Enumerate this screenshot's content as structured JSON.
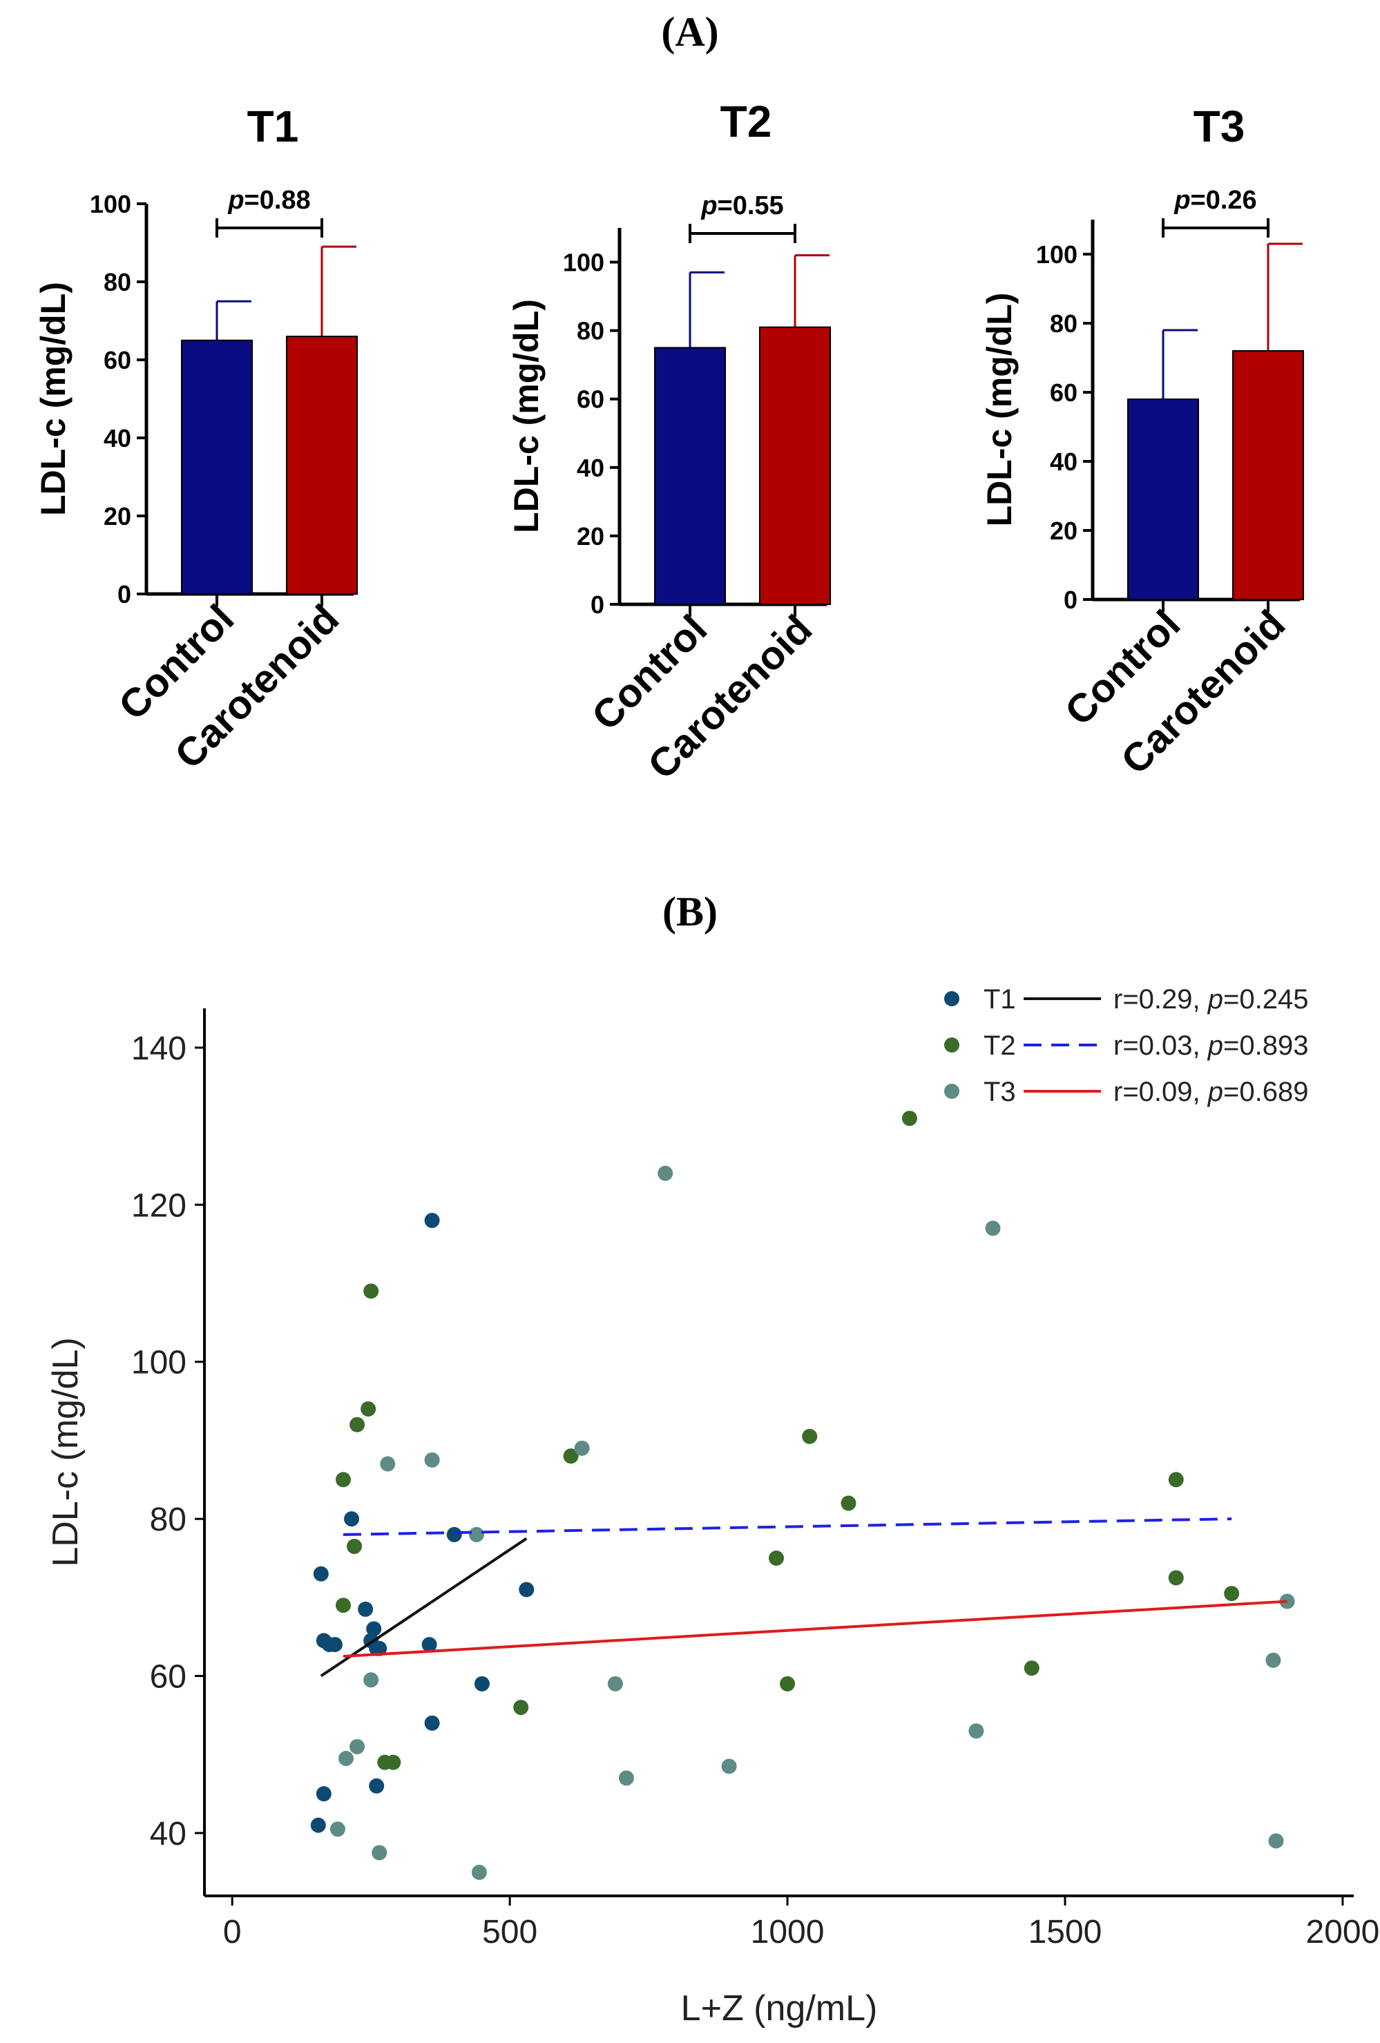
{
  "panel_a_label": "(A)",
  "panel_b_label": "(B)",
  "chart_data": [
    {
      "type": "bar",
      "title": "T1",
      "categories": [
        "Control",
        "Carotenoid"
      ],
      "values": [
        65,
        66
      ],
      "error_upper": [
        75,
        89
      ],
      "colors": [
        "#0b0b82",
        "#b00000"
      ],
      "ylabel": "LDL-c (mg/dL)",
      "ylim": [
        0,
        100
      ],
      "yticks": [
        0,
        20,
        40,
        60,
        80,
        100
      ],
      "p_prefix": "p",
      "p_value": "=0.88"
    },
    {
      "type": "bar",
      "title": "T2",
      "categories": [
        "Control",
        "Carotenoid"
      ],
      "values": [
        75,
        81
      ],
      "error_upper": [
        97,
        102
      ],
      "colors": [
        "#0b0b82",
        "#b00000"
      ],
      "ylabel": "LDL-c (mg/dL)",
      "ylim": [
        0,
        110
      ],
      "yticks": [
        0,
        20,
        40,
        60,
        80,
        100
      ],
      "p_prefix": "p",
      "p_value": "=0.55"
    },
    {
      "type": "bar",
      "title": "T3",
      "categories": [
        "Control",
        "Carotenoid"
      ],
      "values": [
        58,
        72
      ],
      "error_upper": [
        78,
        103
      ],
      "colors": [
        "#0b0b82",
        "#b00000"
      ],
      "ylabel": "LDL-c (mg/dL)",
      "ylim": [
        0,
        110
      ],
      "yticks": [
        0,
        20,
        40,
        60,
        80,
        100
      ],
      "p_prefix": "p",
      "p_value": "=0.26"
    },
    {
      "type": "scatter",
      "xlabel": "L+Z (ng/mL)",
      "ylabel": "LDL-c (mg/dL)",
      "xlim": [
        -50,
        2020
      ],
      "ylim": [
        32,
        145
      ],
      "xticks": [
        0,
        500,
        1000,
        1500,
        2000
      ],
      "yticks": [
        40,
        60,
        80,
        100,
        120,
        140
      ],
      "series": [
        {
          "name": "T1",
          "color": "#0d4a73",
          "line_color": "#111111",
          "line_style": "solid",
          "stat_r": "r=0.29, ",
          "stat_p_prefix": "p",
          "stat_p": "=0.245",
          "fit": [
            [
              160,
              60
            ],
            [
              530,
              77.5
            ]
          ],
          "points": [
            [
              160,
              73
            ],
            [
              165,
              64.5
            ],
            [
              175,
              64
            ],
            [
              185,
              64
            ],
            [
              215,
              80
            ],
            [
              240,
              68.5
            ],
            [
              250,
              64.5
            ],
            [
              255,
              66
            ],
            [
              260,
              63.5
            ],
            [
              265,
              63.5
            ],
            [
              165,
              45
            ],
            [
              155,
              41
            ],
            [
              260,
              46
            ],
            [
              360,
              118
            ],
            [
              355,
              64
            ],
            [
              360,
              54
            ],
            [
              400,
              78
            ],
            [
              450,
              59
            ],
            [
              530,
              71
            ]
          ]
        },
        {
          "name": "T2",
          "color": "#3a6b28",
          "line_color": "#1d22e6",
          "line_style": "dashed",
          "stat_r": "r=0.03, ",
          "stat_p_prefix": "p",
          "stat_p": "=0.893",
          "fit": [
            [
              200,
              78
            ],
            [
              1800,
              80
            ]
          ],
          "points": [
            [
              200,
              85
            ],
            [
              200,
              69
            ],
            [
              220,
              76.5
            ],
            [
              225,
              92
            ],
            [
              245,
              94
            ],
            [
              250,
              109
            ],
            [
              275,
              49
            ],
            [
              290,
              49
            ],
            [
              520,
              56
            ],
            [
              610,
              88
            ],
            [
              980,
              75
            ],
            [
              1000,
              59
            ],
            [
              1040,
              90.5
            ],
            [
              1110,
              82
            ],
            [
              1220,
              131
            ],
            [
              1440,
              61
            ],
            [
              1700,
              85
            ],
            [
              1700,
              72.5
            ],
            [
              1800,
              70.5
            ]
          ]
        },
        {
          "name": "T3",
          "color": "#5e8b85",
          "line_color": "#e01b1b",
          "line_style": "solid",
          "stat_r": "r=0.09, ",
          "stat_p_prefix": "p",
          "stat_p": "=0.689",
          "fit": [
            [
              200,
              62.5
            ],
            [
              1900,
              69.5
            ]
          ],
          "points": [
            [
              190,
              40.5
            ],
            [
              205,
              49.5
            ],
            [
              225,
              51
            ],
            [
              250,
              59.5
            ],
            [
              265,
              37.5
            ],
            [
              280,
              87
            ],
            [
              360,
              87.5
            ],
            [
              440,
              78
            ],
            [
              445,
              35
            ],
            [
              630,
              89
            ],
            [
              690,
              59
            ],
            [
              710,
              47
            ],
            [
              780,
              124
            ],
            [
              895,
              48.5
            ],
            [
              1340,
              53
            ],
            [
              1370,
              117
            ],
            [
              1875,
              62
            ],
            [
              1880,
              39
            ],
            [
              1900,
              69.5
            ]
          ]
        }
      ]
    }
  ]
}
